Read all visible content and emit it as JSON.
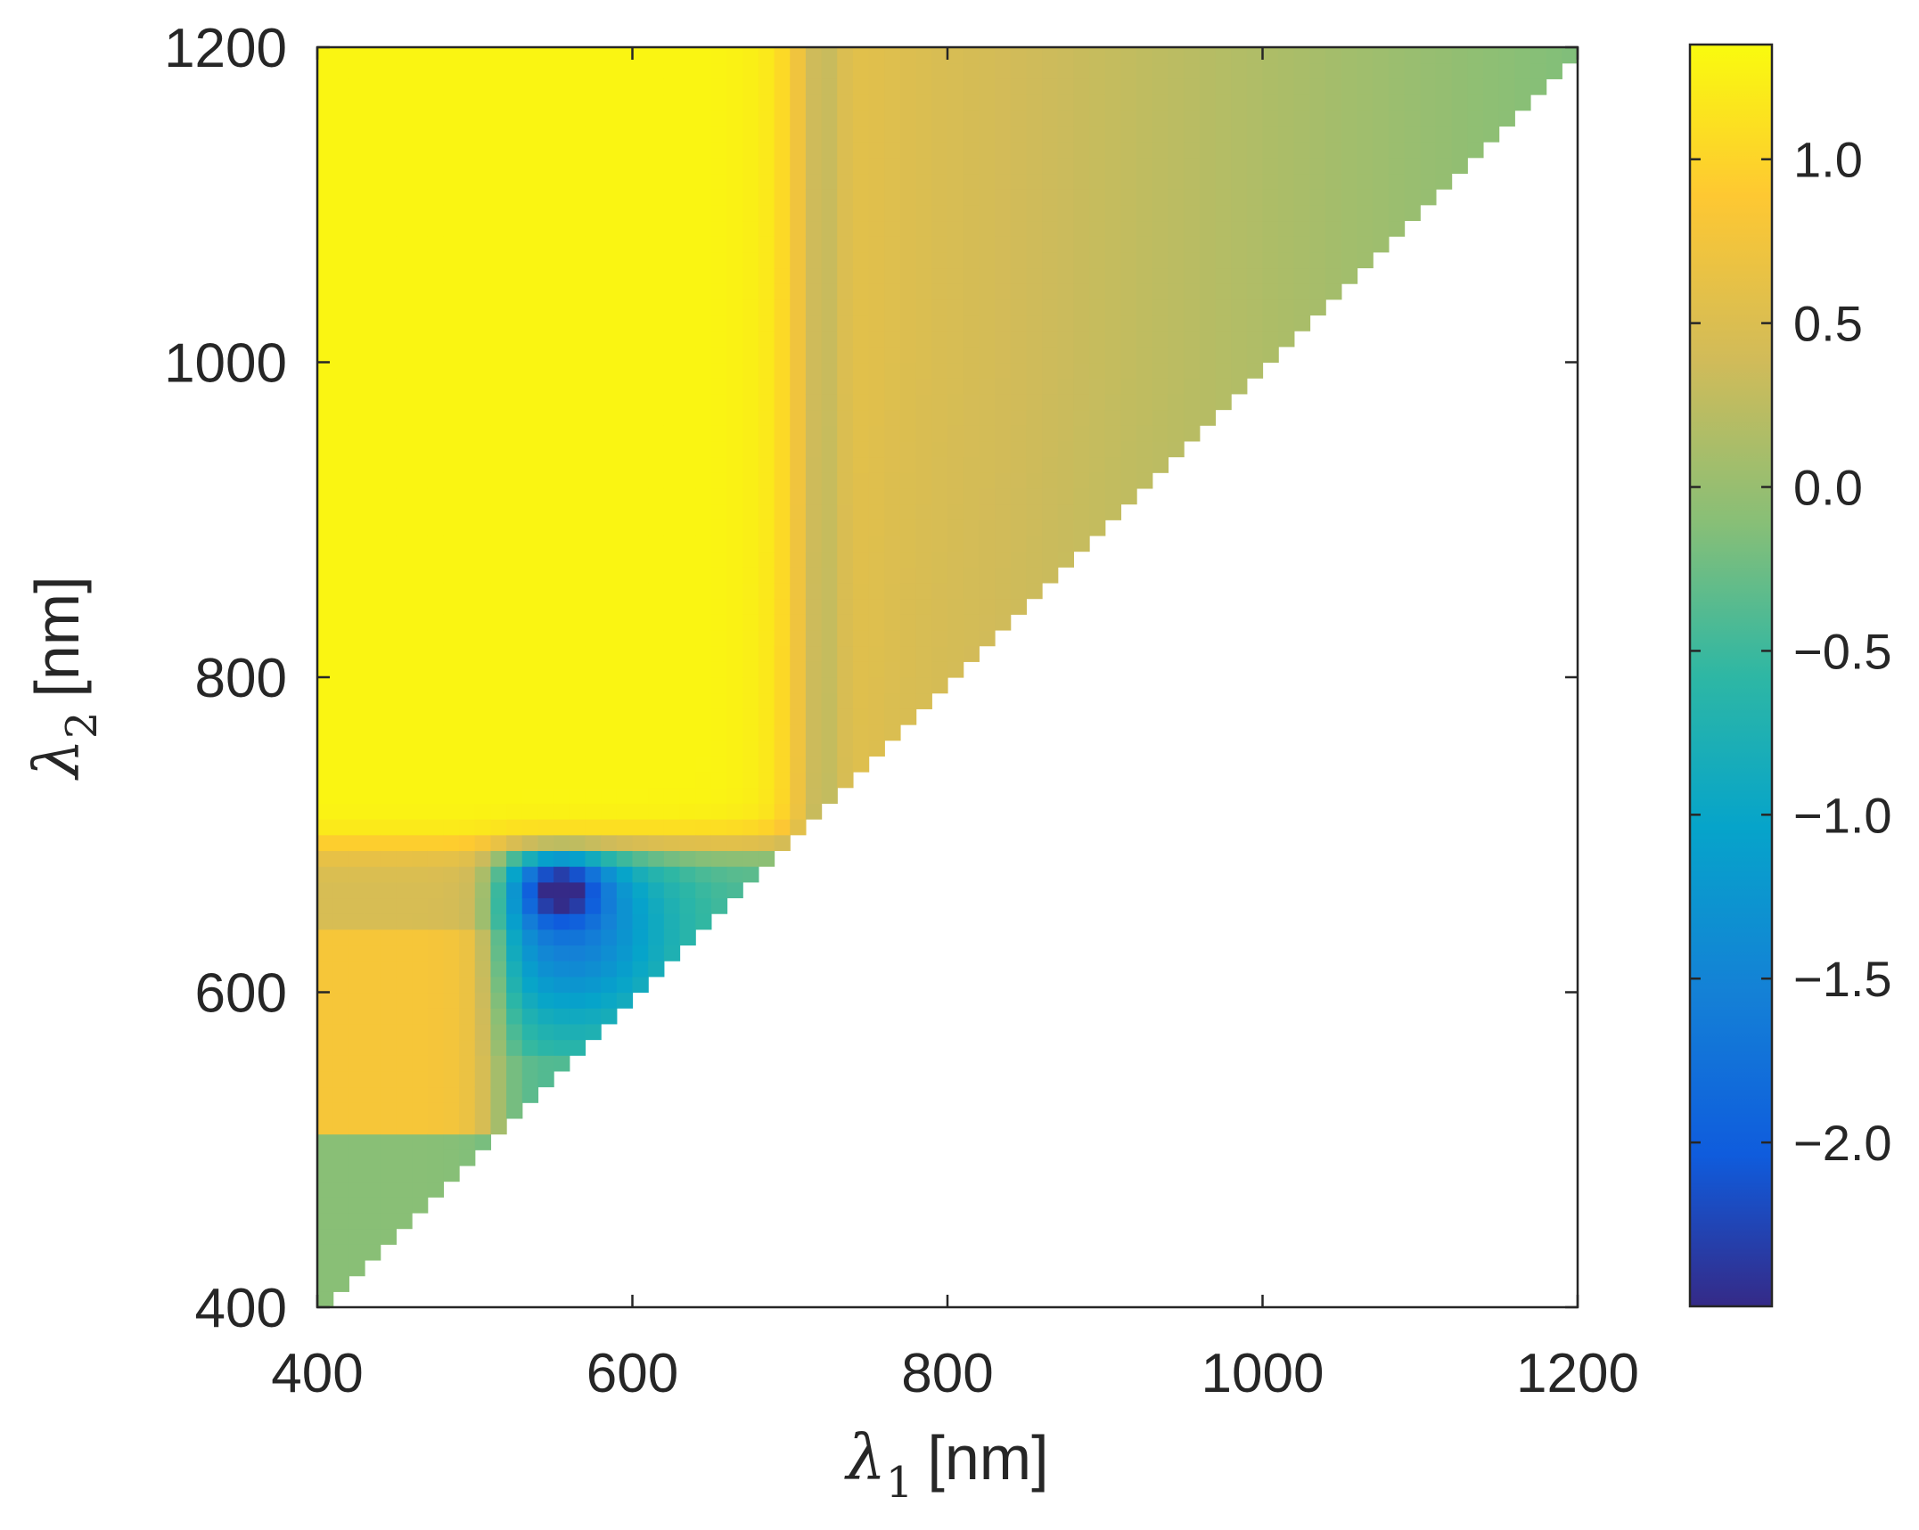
{
  "chart_data": {
    "type": "heatmap",
    "title": "",
    "xlabel": {
      "symbol": "λ",
      "sub": "1",
      "unit": "[nm]"
    },
    "ylabel": {
      "symbol": "λ",
      "sub": "2",
      "unit": "[nm]"
    },
    "xlim": [
      400,
      1200
    ],
    "ylim": [
      400,
      1200
    ],
    "xticks": [
      400,
      600,
      800,
      1000,
      1200
    ],
    "yticks": [
      400,
      600,
      800,
      1000,
      1200
    ],
    "xtick_labels": [
      "400",
      "600",
      "800",
      "1000",
      "1200"
    ],
    "ytick_labels": [
      "400",
      "600",
      "800",
      "1000",
      "1200"
    ],
    "grid_step": 10,
    "domain": "lambda2 >= lambda1 (upper triangle)",
    "grid": false,
    "colorbar": {
      "range": [
        -2.5,
        1.35
      ],
      "ticks": [
        1.0,
        0.5,
        0.0,
        -0.5,
        -1.0,
        -1.5,
        -2.0
      ],
      "tick_labels": [
        "1.0",
        "0.5",
        "0.0",
        "−0.5",
        "−1.0",
        "−1.5",
        "−2.0"
      ],
      "colormap": "parula",
      "placement": "right"
    },
    "features": [
      {
        "region": "lambda1 400-700, lambda2 700-1200",
        "value": 1.3
      },
      {
        "region": "lambda1 ~720 vertical band",
        "value": 0.75
      },
      {
        "region": "lambda1 >750 gradient",
        "value_range": [
          0.5,
          -0.1
        ]
      },
      {
        "region": "lambda1 400-510, lambda2 520-690",
        "value": 0.8
      },
      {
        "region": "lambda1 400-510, lambda2 640-690",
        "value": 0.5
      },
      {
        "region": "lambda2 < 510",
        "value": -0.1
      },
      {
        "region": "minimum near lambda1 550, lambda2 670",
        "value": -2.3
      },
      {
        "region": "lambda1 520-650, lambda2 570-690",
        "value_range": [
          -0.4,
          -1.3
        ]
      }
    ]
  }
}
